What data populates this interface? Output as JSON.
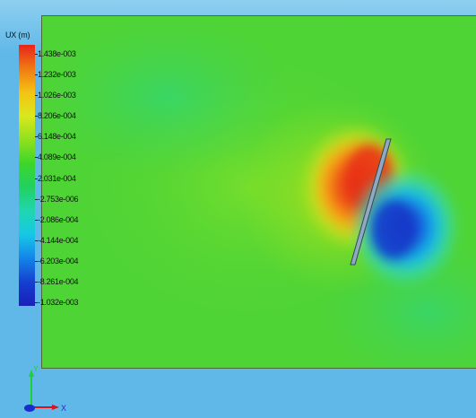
{
  "legend": {
    "title": "UX (m)",
    "ticks": [
      "1.438e-003",
      "1.232e-003",
      "1.026e-003",
      "8.206e-004",
      "6.148e-004",
      "4.089e-004",
      "2.031e-004",
      "-2.753e-006",
      "-2.086e-004",
      "-4.144e-004",
      "-6.203e-004",
      "-8.261e-004",
      "-1.032e-003"
    ],
    "colors": [
      "#e8231a",
      "#f07a12",
      "#f4c312",
      "#d9e81c",
      "#8fe01e",
      "#3cd62a",
      "#22d060",
      "#20d6b0",
      "#16c8e6",
      "#1484e8",
      "#1440d0",
      "#1a20b8"
    ]
  },
  "triad": {
    "y_label": "Y",
    "x_label": "X"
  },
  "colors": {
    "background": "#5fb8e8",
    "field_base": "#52d433",
    "plate": "#8fa9c0"
  }
}
